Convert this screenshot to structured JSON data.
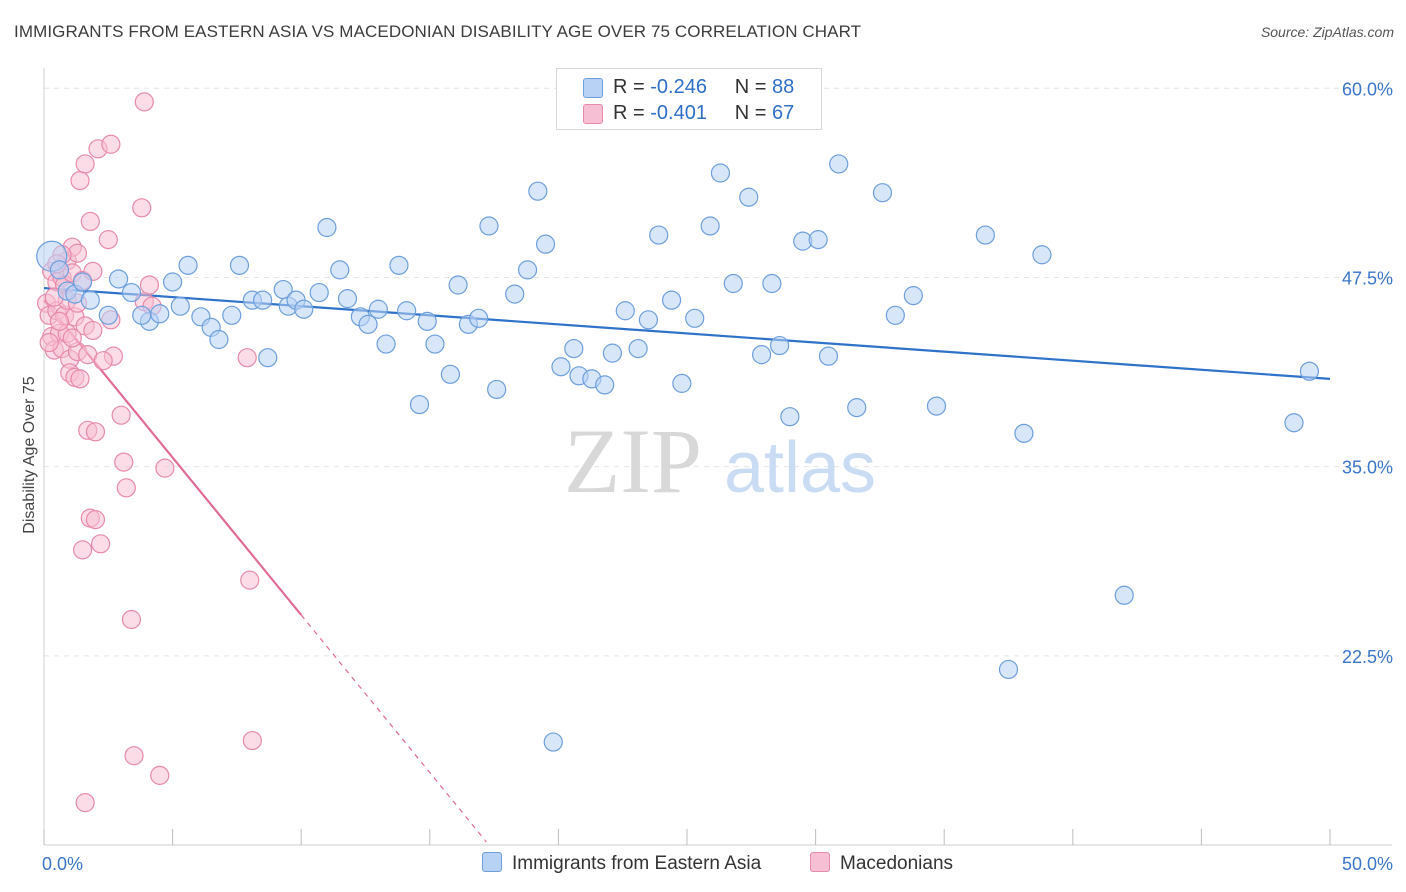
{
  "title": "IMMIGRANTS FROM EASTERN ASIA VS MACEDONIAN DISABILITY AGE OVER 75 CORRELATION CHART",
  "source": "Source: ZipAtlas.com",
  "watermark": {
    "zip": "ZIP",
    "atlas": "atlas"
  },
  "legend_top": [
    {
      "r_label": "R =",
      "r_value": "-0.246",
      "n_label": "N =",
      "n_value": "88"
    },
    {
      "r_label": "R =",
      "r_value": "-0.401",
      "n_label": "N =",
      "n_value": "67"
    }
  ],
  "legend_bottom": [
    "Immigrants from Eastern Asia",
    "Macedonians"
  ],
  "colors": {
    "blue_fill": "#b8d2f5",
    "blue_stroke": "#6d9fdc",
    "blue_line": "#2f72c9",
    "pink_fill": "#f7bfd3",
    "pink_stroke": "#e88aab",
    "pink_line": "#e06c96",
    "grid": "#e4e4e4",
    "tick_label": "#3a76c9"
  },
  "chart_data": {
    "type": "scatter",
    "title": "IMMIGRANTS FROM EASTERN ASIA VS MACEDONIAN DISABILITY AGE OVER 75 CORRELATION CHART",
    "xlabel": "",
    "ylabel": "Disability Age Over 75",
    "xlim": [
      0,
      50
    ],
    "ylim": [
      10,
      62
    ],
    "y_ticks": [
      22.5,
      35.0,
      47.5,
      60.0
    ],
    "y_tick_labels": [
      "22.5%",
      "35.0%",
      "47.5%",
      "60.0%"
    ],
    "x_tick_labels": [
      "0.0%",
      "50.0%"
    ],
    "series": [
      {
        "name": "Immigrants from Eastern Asia",
        "R": -0.246,
        "N": 88,
        "trend": {
          "x0": 0,
          "y0": 46.8,
          "x1": 50,
          "y1": 40.8
        },
        "points": [
          [
            0.3,
            48.9
          ],
          [
            0.6,
            48.0
          ],
          [
            0.9,
            46.6
          ],
          [
            1.2,
            46.4
          ],
          [
            1.8,
            46.0
          ],
          [
            2.5,
            45.0
          ],
          [
            2.9,
            47.4
          ],
          [
            3.4,
            46.5
          ],
          [
            4.1,
            44.6
          ],
          [
            4.5,
            45.1
          ],
          [
            5.0,
            47.2
          ],
          [
            5.3,
            45.6
          ],
          [
            5.6,
            48.3
          ],
          [
            6.1,
            44.9
          ],
          [
            6.5,
            44.2
          ],
          [
            6.8,
            43.4
          ],
          [
            7.3,
            45.0
          ],
          [
            7.6,
            48.3
          ],
          [
            8.1,
            46.0
          ],
          [
            8.5,
            46.0
          ],
          [
            8.7,
            42.2
          ],
          [
            9.3,
            46.7
          ],
          [
            9.5,
            45.6
          ],
          [
            9.8,
            46.0
          ],
          [
            10.1,
            45.4
          ],
          [
            10.7,
            46.5
          ],
          [
            11.0,
            50.8
          ],
          [
            11.5,
            48.0
          ],
          [
            11.8,
            46.1
          ],
          [
            12.3,
            44.9
          ],
          [
            12.6,
            44.4
          ],
          [
            13.0,
            45.4
          ],
          [
            13.3,
            43.1
          ],
          [
            13.8,
            48.3
          ],
          [
            14.1,
            45.3
          ],
          [
            14.6,
            39.1
          ],
          [
            14.9,
            44.6
          ],
          [
            15.2,
            43.1
          ],
          [
            15.8,
            41.1
          ],
          [
            16.1,
            47.0
          ],
          [
            16.5,
            44.4
          ],
          [
            16.9,
            44.8
          ],
          [
            17.3,
            50.9
          ],
          [
            17.6,
            40.1
          ],
          [
            18.3,
            46.4
          ],
          [
            18.8,
            48.0
          ],
          [
            19.2,
            53.2
          ],
          [
            19.5,
            49.7
          ],
          [
            19.8,
            16.8
          ],
          [
            20.1,
            41.6
          ],
          [
            20.6,
            42.8
          ],
          [
            20.8,
            41.0
          ],
          [
            21.3,
            40.8
          ],
          [
            21.8,
            40.4
          ],
          [
            22.1,
            42.5
          ],
          [
            22.6,
            45.3
          ],
          [
            23.1,
            42.8
          ],
          [
            23.5,
            44.7
          ],
          [
            23.9,
            50.3
          ],
          [
            24.4,
            46.0
          ],
          [
            24.8,
            40.5
          ],
          [
            25.3,
            44.8
          ],
          [
            25.9,
            50.9
          ],
          [
            26.3,
            54.4
          ],
          [
            26.8,
            47.1
          ],
          [
            27.4,
            52.8
          ],
          [
            27.9,
            42.4
          ],
          [
            28.3,
            47.1
          ],
          [
            28.6,
            43.0
          ],
          [
            29.0,
            38.3
          ],
          [
            29.5,
            49.9
          ],
          [
            30.1,
            50.0
          ],
          [
            30.5,
            42.3
          ],
          [
            30.9,
            55.0
          ],
          [
            31.6,
            38.9
          ],
          [
            32.6,
            53.1
          ],
          [
            33.1,
            45.0
          ],
          [
            33.8,
            46.3
          ],
          [
            34.7,
            39.0
          ],
          [
            36.6,
            50.3
          ],
          [
            37.5,
            21.6
          ],
          [
            38.1,
            37.2
          ],
          [
            38.8,
            49.0
          ],
          [
            42.0,
            26.5
          ],
          [
            48.6,
            37.9
          ],
          [
            49.2,
            41.3
          ],
          [
            1.5,
            47.2
          ],
          [
            3.8,
            45.0
          ]
        ]
      },
      {
        "name": "Macedonians",
        "R": -0.401,
        "N": 67,
        "trend": {
          "x0": 0,
          "y0": 46.0,
          "x1": 10.0,
          "y1": 25.2,
          "dash_x1": 17.2,
          "dash_y1": 10.2
        },
        "points": [
          [
            0.1,
            45.8
          ],
          [
            0.2,
            45.0
          ],
          [
            0.3,
            47.9
          ],
          [
            0.3,
            43.6
          ],
          [
            0.4,
            42.7
          ],
          [
            0.5,
            47.2
          ],
          [
            0.5,
            45.3
          ],
          [
            0.6,
            43.8
          ],
          [
            0.7,
            42.8
          ],
          [
            0.7,
            47.5
          ],
          [
            0.8,
            47.0
          ],
          [
            0.8,
            45.0
          ],
          [
            0.9,
            48.6
          ],
          [
            0.9,
            43.8
          ],
          [
            1.0,
            42.1
          ],
          [
            1.0,
            41.2
          ],
          [
            1.1,
            49.5
          ],
          [
            1.1,
            47.8
          ],
          [
            1.2,
            44.9
          ],
          [
            1.2,
            40.9
          ],
          [
            1.3,
            49.1
          ],
          [
            1.3,
            42.6
          ],
          [
            1.4,
            40.8
          ],
          [
            1.4,
            53.9
          ],
          [
            1.5,
            47.3
          ],
          [
            1.5,
            29.5
          ],
          [
            1.6,
            55.0
          ],
          [
            1.6,
            44.3
          ],
          [
            1.7,
            42.4
          ],
          [
            1.7,
            37.4
          ],
          [
            1.8,
            51.2
          ],
          [
            1.8,
            31.6
          ],
          [
            1.9,
            47.9
          ],
          [
            2.0,
            37.3
          ],
          [
            2.0,
            31.5
          ],
          [
            2.1,
            56.0
          ],
          [
            2.2,
            29.9
          ],
          [
            2.6,
            56.3
          ],
          [
            2.6,
            44.7
          ],
          [
            2.7,
            42.3
          ],
          [
            3.0,
            38.4
          ],
          [
            3.1,
            35.3
          ],
          [
            3.2,
            33.6
          ],
          [
            3.4,
            24.9
          ],
          [
            3.5,
            15.9
          ],
          [
            3.8,
            52.1
          ],
          [
            3.9,
            45.9
          ],
          [
            3.9,
            59.1
          ],
          [
            4.1,
            47.0
          ],
          [
            4.2,
            45.6
          ],
          [
            4.5,
            14.6
          ],
          [
            4.7,
            34.9
          ],
          [
            7.9,
            42.2
          ],
          [
            8.0,
            27.5
          ],
          [
            8.1,
            16.9
          ],
          [
            1.6,
            12.8
          ],
          [
            2.5,
            50.0
          ],
          [
            0.6,
            44.6
          ],
          [
            0.9,
            46.0
          ],
          [
            1.1,
            43.5
          ],
          [
            0.4,
            46.2
          ],
          [
            0.7,
            49.0
          ],
          [
            1.3,
            45.8
          ],
          [
            2.3,
            42.0
          ],
          [
            0.2,
            43.2
          ],
          [
            1.9,
            44.0
          ],
          [
            0.5,
            48.4
          ]
        ]
      }
    ]
  }
}
